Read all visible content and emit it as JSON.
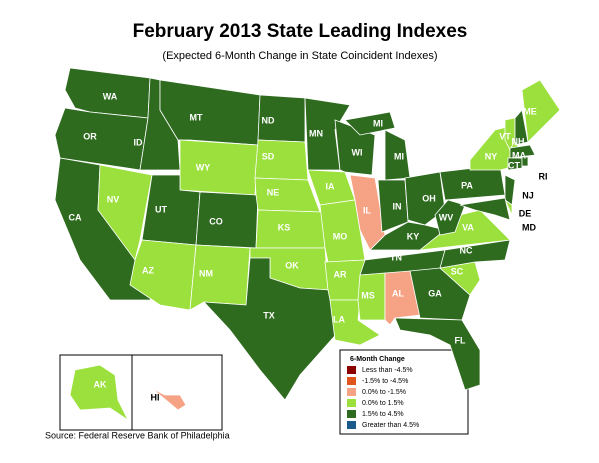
{
  "title": "February 2013 State Leading Indexes",
  "subtitle": "(Expected 6-Month Change in State Coincident Indexes)",
  "legend": {
    "title": "6-Month Change",
    "items": [
      {
        "label": "Less than -4.5%",
        "color": "#8b0000"
      },
      {
        "label": "-1.5% to -4.5%",
        "color": "#e0541e"
      },
      {
        "label": "0.0% to -1.5%",
        "color": "#f6a284"
      },
      {
        "label": "0.0% to  1.5%",
        "color": "#9be03c"
      },
      {
        "label": "1.5% to  4.5%",
        "color": "#2e6b1f"
      },
      {
        "label": "Greater than 4.5%",
        "color": "#1a5a8a"
      }
    ]
  },
  "states": [
    {
      "label": "WA",
      "color": "#2e6b1f"
    },
    {
      "label": "OR",
      "color": "#2e6b1f"
    },
    {
      "label": "CA",
      "color": "#2e6b1f"
    },
    {
      "label": "NV",
      "color": "#9be03c"
    },
    {
      "label": "ID",
      "color": "#2e6b1f"
    },
    {
      "label": "MT",
      "color": "#2e6b1f"
    },
    {
      "label": "WY",
      "color": "#9be03c"
    },
    {
      "label": "UT",
      "color": "#2e6b1f"
    },
    {
      "label": "AZ",
      "color": "#9be03c"
    },
    {
      "label": "CO",
      "color": "#2e6b1f"
    },
    {
      "label": "NM",
      "color": "#9be03c"
    },
    {
      "label": "ND",
      "color": "#2e6b1f"
    },
    {
      "label": "SD",
      "color": "#9be03c"
    },
    {
      "label": "NE",
      "color": "#9be03c"
    },
    {
      "label": "KS",
      "color": "#9be03c"
    },
    {
      "label": "OK",
      "color": "#9be03c"
    },
    {
      "label": "TX",
      "color": "#2e6b1f"
    },
    {
      "label": "MN",
      "color": "#2e6b1f"
    },
    {
      "label": "IA",
      "color": "#9be03c"
    },
    {
      "label": "MO",
      "color": "#9be03c"
    },
    {
      "label": "AR",
      "color": "#9be03c"
    },
    {
      "label": "LA",
      "color": "#9be03c"
    },
    {
      "label": "WI",
      "color": "#2e6b1f"
    },
    {
      "label": "IL",
      "color": "#f6a284"
    },
    {
      "label": "MI",
      "color": "#2e6b1f"
    },
    {
      "label": "MI",
      "color": "#2e6b1f"
    },
    {
      "label": "IN",
      "color": "#2e6b1f"
    },
    {
      "label": "OH",
      "color": "#2e6b1f"
    },
    {
      "label": "KY",
      "color": "#2e6b1f"
    },
    {
      "label": "TN",
      "color": "#2e6b1f"
    },
    {
      "label": "MS",
      "color": "#9be03c"
    },
    {
      "label": "AL",
      "color": "#f6a284"
    },
    {
      "label": "GA",
      "color": "#2e6b1f"
    },
    {
      "label": "FL",
      "color": "#2e6b1f"
    },
    {
      "label": "SC",
      "color": "#9be03c"
    },
    {
      "label": "NC",
      "color": "#2e6b1f"
    },
    {
      "label": "VA",
      "color": "#9be03c"
    },
    {
      "label": "WV",
      "color": "#2e6b1f"
    },
    {
      "label": "PA",
      "color": "#2e6b1f"
    },
    {
      "label": "NY",
      "color": "#9be03c"
    },
    {
      "label": "NJ",
      "color": "#2e6b1f"
    },
    {
      "label": "DE",
      "color": "#9be03c"
    },
    {
      "label": "MD",
      "color": "#2e6b1f"
    },
    {
      "label": "VT",
      "color": "#9be03c"
    },
    {
      "label": "NH",
      "color": "#2e6b1f"
    },
    {
      "label": "ME",
      "color": "#9be03c"
    },
    {
      "label": "MA",
      "color": "#2e6b1f"
    },
    {
      "label": "CT",
      "color": "#2e6b1f"
    },
    {
      "label": "RI",
      "color": "#2e6b1f"
    },
    {
      "label": "AK",
      "color": "#9be03c"
    },
    {
      "label": "HI",
      "color": "#f6a284"
    }
  ],
  "source": "Source: Federal Reserve Bank of Philadelphia"
}
